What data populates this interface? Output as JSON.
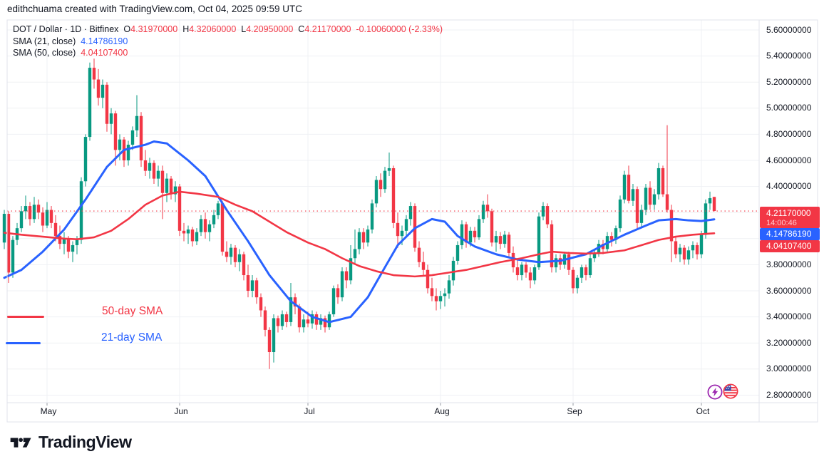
{
  "attribution": "edithchuama created with TradingView.com, Oct 04, 2025 09:59 UTC",
  "header": {
    "symbol": "DOT / Dollar · 1D · Bitfinex",
    "ohlc": [
      {
        "label": "O",
        "value": "4.31970000"
      },
      {
        "label": "H",
        "value": "4.32060000"
      },
      {
        "label": "L",
        "value": "4.20950000"
      },
      {
        "label": "C",
        "value": "4.21170000"
      }
    ],
    "change": "-0.10060000 (-2.33%)",
    "sma21": {
      "label": "SMA (21, close)",
      "value": "4.14786190"
    },
    "sma50": {
      "label": "SMA (50, close)",
      "value": "4.04107400"
    }
  },
  "legend": {
    "sma50_label": "50-day SMA",
    "sma21_label": "21-day SMA"
  },
  "price_scale": {
    "labels": [
      "5.60000000",
      "5.40000000",
      "5.20000000",
      "5.00000000",
      "4.80000000",
      "4.60000000",
      "4.40000000",
      "4.20000000",
      "4.00000000",
      "3.80000000",
      "3.60000000",
      "3.40000000",
      "3.20000000",
      "3.00000000",
      "2.80000000"
    ],
    "badges": [
      {
        "price": 4.2117,
        "text": "4.21170000",
        "countdown": "14:00:46",
        "bg": "#F23645"
      },
      {
        "price": 4.1478619,
        "text": "4.14786190",
        "bg": "#2962FF"
      },
      {
        "price": 4.041074,
        "text": "4.04107400",
        "bg": "#F23645"
      }
    ]
  },
  "footer": {
    "brand": "TradingView"
  },
  "colors": {
    "up": "#089981",
    "down": "#F23645",
    "sma21": "#2962FF",
    "sma50": "#F23645",
    "grid": "#EFF1F4",
    "frame": "#E0E3EB",
    "text": "#131722",
    "tick": "#9598A1",
    "lightning": "#9C27B0",
    "flag_ring": "#F23645"
  },
  "chart_data": {
    "type": "candlestick",
    "symbol": "DOT / Dollar",
    "interval": "1D",
    "exchange": "Bitfinex",
    "title": "DOT/USD daily candles with 21-day and 50-day SMA overlays",
    "last": {
      "open": 4.3197,
      "high": 4.3206,
      "low": 4.2095,
      "close": 4.2117,
      "change": -0.1006,
      "change_pct": -2.33,
      "countdown": "14:00:46"
    },
    "y_axis": {
      "min": 2.8,
      "max": 5.6,
      "tick_step": 0.2,
      "grid": true
    },
    "x_axis": {
      "bar_count": 167,
      "months": [
        {
          "label": "May",
          "index": 10
        },
        {
          "label": "Jun",
          "index": 41
        },
        {
          "label": "Jul",
          "index": 71
        },
        {
          "label": "Aug",
          "index": 102
        },
        {
          "label": "Sep",
          "index": 133
        },
        {
          "label": "Oct",
          "index": 163
        }
      ]
    },
    "candles": [
      [
        3.97,
        4.22,
        3.92,
        4.19
      ],
      [
        4.19,
        4.21,
        3.66,
        3.74
      ],
      [
        3.74,
        4.02,
        3.7,
        3.99
      ],
      [
        3.99,
        4.12,
        3.95,
        4.08
      ],
      [
        4.08,
        4.25,
        4.05,
        4.21
      ],
      [
        4.21,
        4.33,
        4.15,
        4.25
      ],
      [
        4.25,
        4.28,
        4.1,
        4.15
      ],
      [
        4.15,
        4.32,
        4.12,
        4.26
      ],
      [
        4.26,
        4.3,
        4.15,
        4.2
      ],
      [
        4.2,
        4.24,
        4.05,
        4.1
      ],
      [
        4.1,
        4.28,
        4.08,
        4.22
      ],
      [
        4.22,
        4.25,
        4.08,
        4.12
      ],
      [
        4.12,
        4.18,
        3.98,
        4.02
      ],
      [
        4.02,
        4.1,
        3.92,
        3.96
      ],
      [
        3.96,
        4.05,
        3.88,
        4.0
      ],
      [
        4.0,
        4.02,
        3.85,
        3.9
      ],
      [
        3.9,
        3.98,
        3.82,
        3.95
      ],
      [
        3.95,
        4.02,
        3.88,
        3.99
      ],
      [
        3.99,
        4.47,
        3.96,
        4.44
      ],
      [
        4.44,
        4.8,
        4.4,
        4.78
      ],
      [
        4.78,
        5.35,
        4.75,
        5.31
      ],
      [
        5.31,
        5.38,
        5.15,
        5.22
      ],
      [
        5.22,
        5.3,
        5.02,
        5.08
      ],
      [
        5.08,
        5.22,
        5.0,
        5.18
      ],
      [
        5.18,
        5.2,
        4.82,
        4.88
      ],
      [
        4.88,
        5.0,
        4.8,
        4.96
      ],
      [
        4.96,
        4.98,
        4.56,
        4.68
      ],
      [
        4.68,
        4.8,
        4.6,
        4.76
      ],
      [
        4.76,
        4.78,
        4.55,
        4.6
      ],
      [
        4.6,
        4.75,
        4.56,
        4.72
      ],
      [
        4.72,
        4.86,
        4.68,
        4.83
      ],
      [
        4.83,
        5.1,
        4.78,
        4.94
      ],
      [
        4.94,
        4.97,
        4.55,
        4.6
      ],
      [
        4.6,
        4.68,
        4.48,
        4.52
      ],
      [
        4.52,
        4.62,
        4.46,
        4.58
      ],
      [
        4.58,
        4.6,
        4.42,
        4.46
      ],
      [
        4.46,
        4.56,
        4.4,
        4.52
      ],
      [
        4.52,
        4.56,
        4.15,
        4.35
      ],
      [
        4.35,
        4.5,
        4.28,
        4.46
      ],
      [
        4.46,
        4.48,
        4.3,
        4.34
      ],
      [
        4.34,
        4.44,
        4.28,
        4.4
      ],
      [
        4.4,
        4.42,
        4.02,
        4.06
      ],
      [
        4.06,
        4.12,
        3.98,
        4.04
      ],
      [
        4.04,
        4.1,
        3.96,
        4.07
      ],
      [
        4.07,
        4.09,
        3.94,
        3.98
      ],
      [
        3.98,
        4.08,
        3.95,
        4.05
      ],
      [
        4.05,
        4.18,
        4.02,
        4.15
      ],
      [
        4.15,
        4.2,
        4.0,
        4.05
      ],
      [
        4.05,
        4.14,
        3.98,
        4.11
      ],
      [
        4.11,
        4.22,
        4.08,
        4.18
      ],
      [
        4.18,
        4.29,
        4.15,
        4.27
      ],
      [
        4.27,
        4.29,
        3.87,
        3.9
      ],
      [
        3.9,
        3.98,
        3.82,
        3.86
      ],
      [
        3.86,
        3.96,
        3.8,
        3.93
      ],
      [
        3.93,
        3.95,
        3.78,
        3.82
      ],
      [
        3.82,
        3.92,
        3.75,
        3.88
      ],
      [
        3.88,
        3.9,
        3.68,
        3.72
      ],
      [
        3.72,
        3.8,
        3.55,
        3.6
      ],
      [
        3.6,
        3.72,
        3.55,
        3.68
      ],
      [
        3.68,
        3.7,
        3.5,
        3.55
      ],
      [
        3.55,
        3.58,
        3.4,
        3.45
      ],
      [
        3.45,
        3.48,
        3.25,
        3.3
      ],
      [
        3.3,
        3.32,
        3.0,
        3.13
      ],
      [
        3.13,
        3.42,
        3.05,
        3.39
      ],
      [
        3.39,
        3.41,
        3.28,
        3.33
      ],
      [
        3.33,
        3.45,
        3.3,
        3.42
      ],
      [
        3.42,
        3.44,
        3.32,
        3.36
      ],
      [
        3.36,
        3.66,
        3.33,
        3.55
      ],
      [
        3.55,
        3.58,
        3.42,
        3.48
      ],
      [
        3.48,
        3.5,
        3.28,
        3.32
      ],
      [
        3.32,
        3.42,
        3.28,
        3.38
      ],
      [
        3.38,
        3.44,
        3.32,
        3.35
      ],
      [
        3.35,
        3.45,
        3.31,
        3.42
      ],
      [
        3.42,
        3.44,
        3.3,
        3.34
      ],
      [
        3.34,
        3.42,
        3.3,
        3.39
      ],
      [
        3.39,
        3.41,
        3.28,
        3.32
      ],
      [
        3.32,
        3.44,
        3.3,
        3.42
      ],
      [
        3.42,
        3.64,
        3.4,
        3.62
      ],
      [
        3.62,
        3.65,
        3.5,
        3.55
      ],
      [
        3.55,
        3.78,
        3.52,
        3.75
      ],
      [
        3.75,
        3.78,
        3.62,
        3.68
      ],
      [
        3.68,
        3.95,
        3.65,
        3.85
      ],
      [
        3.85,
        4.07,
        3.8,
        3.92
      ],
      [
        3.92,
        4.08,
        3.88,
        4.05
      ],
      [
        4.05,
        4.08,
        3.92,
        3.97
      ],
      [
        3.97,
        4.1,
        3.94,
        4.07
      ],
      [
        4.07,
        4.3,
        4.04,
        4.27
      ],
      [
        4.27,
        4.48,
        4.24,
        4.45
      ],
      [
        4.45,
        4.5,
        4.32,
        4.38
      ],
      [
        4.38,
        4.55,
        4.35,
        4.52
      ],
      [
        4.52,
        4.66,
        4.48,
        4.54
      ],
      [
        4.54,
        4.56,
        4.08,
        4.12
      ],
      [
        4.12,
        4.2,
        3.93,
        4.02
      ],
      [
        4.02,
        4.1,
        3.95,
        4.06
      ],
      [
        4.06,
        4.18,
        4.02,
        4.15
      ],
      [
        4.15,
        4.28,
        4.1,
        4.25
      ],
      [
        4.25,
        4.27,
        3.9,
        3.93
      ],
      [
        3.93,
        3.98,
        3.78,
        3.82
      ],
      [
        3.82,
        3.9,
        3.72,
        3.76
      ],
      [
        3.76,
        3.8,
        3.58,
        3.62
      ],
      [
        3.62,
        3.7,
        3.52,
        3.56
      ],
      [
        3.56,
        3.62,
        3.45,
        3.52
      ],
      [
        3.52,
        3.6,
        3.46,
        3.56
      ],
      [
        3.56,
        3.62,
        3.48,
        3.58
      ],
      [
        3.58,
        3.72,
        3.54,
        3.68
      ],
      [
        3.68,
        3.86,
        3.64,
        3.83
      ],
      [
        3.83,
        3.98,
        3.8,
        3.95
      ],
      [
        3.95,
        4.14,
        3.92,
        4.11
      ],
      [
        4.11,
        4.13,
        3.93,
        3.97
      ],
      [
        3.97,
        4.09,
        3.94,
        4.06
      ],
      [
        4.06,
        4.09,
        3.97,
        4.01
      ],
      [
        4.01,
        4.18,
        3.99,
        4.15
      ],
      [
        4.15,
        4.29,
        4.12,
        4.26
      ],
      [
        4.26,
        4.34,
        4.16,
        4.21
      ],
      [
        4.21,
        4.23,
        3.94,
        3.97
      ],
      [
        3.97,
        4.06,
        3.9,
        4.02
      ],
      [
        4.02,
        4.05,
        3.92,
        3.96
      ],
      [
        3.96,
        4.06,
        3.93,
        4.03
      ],
      [
        4.03,
        4.05,
        3.85,
        3.89
      ],
      [
        3.89,
        3.94,
        3.74,
        3.78
      ],
      [
        3.78,
        3.84,
        3.68,
        3.72
      ],
      [
        3.72,
        3.82,
        3.68,
        3.8
      ],
      [
        3.8,
        3.82,
        3.7,
        3.74
      ],
      [
        3.74,
        3.78,
        3.62,
        3.68
      ],
      [
        3.68,
        3.8,
        3.65,
        3.78
      ],
      [
        3.78,
        4.2,
        3.76,
        4.17
      ],
      [
        4.17,
        4.28,
        4.14,
        4.25
      ],
      [
        4.25,
        4.27,
        4.08,
        4.11
      ],
      [
        4.11,
        4.14,
        3.74,
        3.78
      ],
      [
        3.78,
        3.88,
        3.74,
        3.85
      ],
      [
        3.85,
        3.88,
        3.76,
        3.8
      ],
      [
        3.8,
        3.9,
        3.77,
        3.88
      ],
      [
        3.88,
        3.9,
        3.72,
        3.76
      ],
      [
        3.76,
        3.78,
        3.58,
        3.62
      ],
      [
        3.62,
        3.72,
        3.58,
        3.7
      ],
      [
        3.7,
        3.8,
        3.66,
        3.78
      ],
      [
        3.78,
        3.8,
        3.68,
        3.72
      ],
      [
        3.72,
        3.88,
        3.7,
        3.85
      ],
      [
        3.85,
        3.92,
        3.82,
        3.89
      ],
      [
        3.89,
        3.99,
        3.86,
        3.96
      ],
      [
        3.96,
        3.99,
        3.88,
        3.92
      ],
      [
        3.92,
        4.05,
        3.9,
        4.02
      ],
      [
        4.02,
        4.05,
        3.94,
        3.99
      ],
      [
        3.99,
        4.1,
        3.96,
        4.08
      ],
      [
        4.08,
        4.33,
        4.05,
        4.3
      ],
      [
        4.3,
        4.52,
        4.27,
        4.49
      ],
      [
        4.49,
        4.56,
        4.27,
        4.29
      ],
      [
        4.29,
        4.42,
        4.25,
        4.38
      ],
      [
        4.38,
        4.4,
        4.08,
        4.12
      ],
      [
        4.12,
        4.26,
        4.08,
        4.22
      ],
      [
        4.22,
        4.42,
        4.18,
        4.39
      ],
      [
        4.39,
        4.44,
        4.22,
        4.26
      ],
      [
        4.26,
        4.38,
        4.22,
        4.34
      ],
      [
        4.34,
        4.58,
        4.3,
        4.54
      ],
      [
        4.54,
        4.56,
        4.32,
        4.34
      ],
      [
        4.34,
        4.87,
        4.2,
        4.22
      ],
      [
        4.22,
        4.26,
        3.82,
        3.98
      ],
      [
        3.98,
        4.02,
        3.85,
        3.88
      ],
      [
        3.88,
        3.96,
        3.82,
        3.93
      ],
      [
        3.93,
        3.95,
        3.8,
        3.84
      ],
      [
        3.84,
        3.94,
        3.8,
        3.91
      ],
      [
        3.91,
        3.98,
        3.85,
        3.95
      ],
      [
        3.95,
        3.97,
        3.84,
        3.88
      ],
      [
        3.88,
        4.06,
        3.85,
        4.03
      ],
      [
        4.03,
        4.3,
        4.0,
        4.27
      ],
      [
        4.27,
        4.36,
        4.22,
        4.31
      ],
      [
        4.3197,
        4.3206,
        4.2095,
        4.2117
      ]
    ],
    "overlays": [
      {
        "name": "SMA 21",
        "color": "#2962FF",
        "current_value": 4.1478619,
        "points": [
          [
            0,
            3.7
          ],
          [
            4,
            3.76
          ],
          [
            9,
            3.9
          ],
          [
            14,
            4.07
          ],
          [
            19,
            4.3
          ],
          [
            24,
            4.55
          ],
          [
            28,
            4.68
          ],
          [
            33,
            4.72
          ],
          [
            35,
            4.745
          ],
          [
            38,
            4.73
          ],
          [
            43,
            4.6
          ],
          [
            47,
            4.48
          ],
          [
            52,
            4.22
          ],
          [
            57,
            3.98
          ],
          [
            62,
            3.72
          ],
          [
            67,
            3.52
          ],
          [
            72,
            3.4
          ],
          [
            76,
            3.36
          ],
          [
            81,
            3.4
          ],
          [
            85,
            3.55
          ],
          [
            89,
            3.78
          ],
          [
            92,
            3.95
          ],
          [
            96,
            4.08
          ],
          [
            100,
            4.15
          ],
          [
            103,
            4.13
          ],
          [
            106,
            4.02
          ],
          [
            110,
            3.94
          ],
          [
            115,
            3.88
          ],
          [
            120,
            3.84
          ],
          [
            125,
            3.82
          ],
          [
            130,
            3.83
          ],
          [
            136,
            3.88
          ],
          [
            140,
            3.95
          ],
          [
            145,
            4.03
          ],
          [
            150,
            4.1
          ],
          [
            153,
            4.14
          ],
          [
            157,
            4.15
          ],
          [
            160,
            4.14
          ],
          [
            163,
            4.135
          ],
          [
            166,
            4.148
          ]
        ]
      },
      {
        "name": "SMA 50",
        "color": "#F23645",
        "current_value": 4.041074,
        "points": [
          [
            0,
            4.045
          ],
          [
            4,
            4.03
          ],
          [
            9,
            4.015
          ],
          [
            14,
            4.0
          ],
          [
            17,
            3.995
          ],
          [
            21,
            4.01
          ],
          [
            25,
            4.06
          ],
          [
            29,
            4.15
          ],
          [
            33,
            4.26
          ],
          [
            37,
            4.33
          ],
          [
            41,
            4.36
          ],
          [
            45,
            4.345
          ],
          [
            50,
            4.32
          ],
          [
            54,
            4.26
          ],
          [
            58,
            4.21
          ],
          [
            62,
            4.13
          ],
          [
            66,
            4.05
          ],
          [
            71,
            3.97
          ],
          [
            75,
            3.92
          ],
          [
            79,
            3.85
          ],
          [
            83,
            3.79
          ],
          [
            87,
            3.75
          ],
          [
            91,
            3.72
          ],
          [
            96,
            3.71
          ],
          [
            100,
            3.72
          ],
          [
            104,
            3.74
          ],
          [
            108,
            3.76
          ],
          [
            112,
            3.79
          ],
          [
            116,
            3.82
          ],
          [
            121,
            3.85
          ],
          [
            125,
            3.88
          ],
          [
            128,
            3.9
          ],
          [
            132,
            3.89
          ],
          [
            136,
            3.885
          ],
          [
            140,
            3.89
          ],
          [
            145,
            3.91
          ],
          [
            149,
            3.95
          ],
          [
            153,
            3.99
          ],
          [
            157,
            4.015
          ],
          [
            161,
            4.03
          ],
          [
            166,
            4.041
          ]
        ]
      }
    ],
    "annotations": {
      "last_price_line": 4.2117,
      "text_labels": [
        {
          "text": "50-day SMA",
          "color": "#F23645"
        },
        {
          "text": "21-day SMA",
          "color": "#2962FF"
        }
      ]
    }
  }
}
